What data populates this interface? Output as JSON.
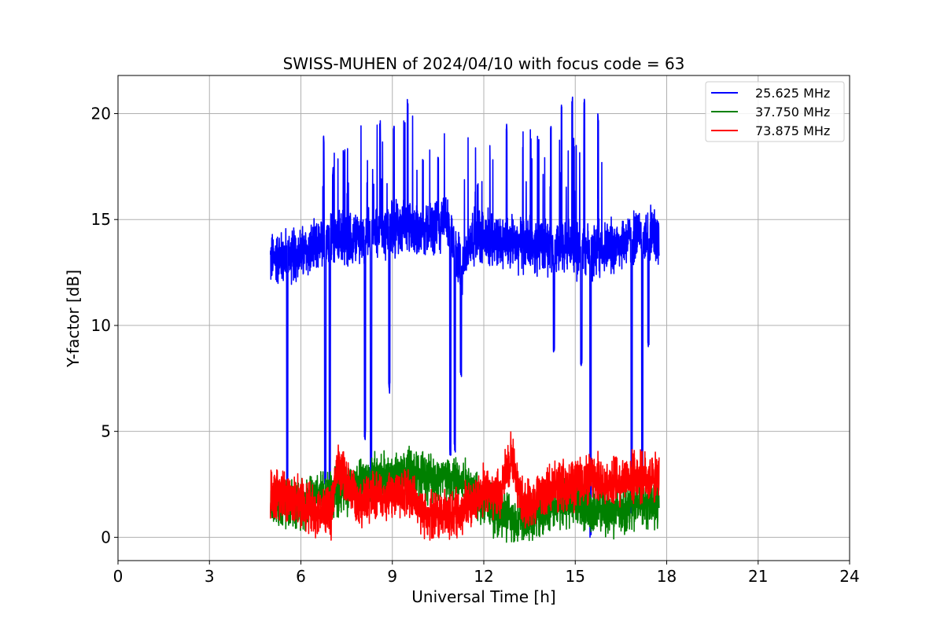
{
  "chart_data": {
    "type": "line",
    "title": "SWISS-MUHEN of 2024/04/10 with focus code = 63",
    "xlabel": "Universal Time [h]",
    "ylabel": "Y-factor [dB]",
    "xlim": [
      0,
      24
    ],
    "ylim": [
      -1.1,
      21.8
    ],
    "xticks": [
      0,
      3,
      6,
      9,
      12,
      15,
      18,
      21,
      24
    ],
    "yticks": [
      0,
      5,
      10,
      15,
      20
    ],
    "grid": true,
    "legend_position": "top-right",
    "x_range_data": [
      5.0,
      17.75
    ],
    "series": [
      {
        "name": "25.625 MHz",
        "color": "#0000ff",
        "baseline": [
          [
            5.0,
            13.1
          ],
          [
            5.5,
            13.3
          ],
          [
            6.0,
            13.4
          ],
          [
            6.5,
            13.6
          ],
          [
            7.0,
            14.0
          ],
          [
            8.0,
            14.2
          ],
          [
            9.0,
            14.6
          ],
          [
            10.0,
            14.5
          ],
          [
            10.8,
            14.8
          ],
          [
            11.3,
            12.5
          ],
          [
            11.6,
            14.2
          ],
          [
            12.5,
            14.0
          ],
          [
            13.5,
            13.8
          ],
          [
            14.5,
            13.7
          ],
          [
            15.5,
            13.4
          ],
          [
            16.3,
            13.8
          ],
          [
            17.0,
            14.2
          ],
          [
            17.75,
            14.3
          ]
        ],
        "peaks": [
          [
            6.75,
            19.0
          ],
          [
            7.05,
            17.5
          ],
          [
            7.4,
            18.3
          ],
          [
            8.1,
            17.5
          ],
          [
            8.6,
            19.7
          ],
          [
            9.05,
            19.5
          ],
          [
            9.5,
            20.7
          ],
          [
            10.0,
            17.9
          ],
          [
            10.5,
            18.0
          ],
          [
            11.8,
            16.8
          ],
          [
            12.75,
            19.5
          ],
          [
            13.8,
            19.0
          ],
          [
            14.2,
            19.5
          ],
          [
            14.55,
            20.5
          ],
          [
            14.9,
            20.8
          ],
          [
            15.3,
            20.8
          ],
          [
            15.75,
            20.0
          ],
          [
            17.2,
            16.7
          ]
        ],
        "dips": [
          [
            5.55,
            2.5
          ],
          [
            6.8,
            2.5
          ],
          [
            6.95,
            2.6
          ],
          [
            8.1,
            4.6
          ],
          [
            8.3,
            2.6
          ],
          [
            8.9,
            6.8
          ],
          [
            10.9,
            3.8
          ],
          [
            11.05,
            4.0
          ],
          [
            11.25,
            7.5
          ],
          [
            14.3,
            8.7
          ],
          [
            15.2,
            8.1
          ],
          [
            15.5,
            0.0
          ],
          [
            16.85,
            1.1
          ],
          [
            17.2,
            2.6
          ],
          [
            17.4,
            9.0
          ]
        ]
      },
      {
        "name": "37.750 MHz",
        "color": "#008000",
        "baseline": [
          [
            5.0,
            1.3
          ],
          [
            5.5,
            1.5
          ],
          [
            6.0,
            1.6
          ],
          [
            6.5,
            1.9
          ],
          [
            7.0,
            2.1
          ],
          [
            7.5,
            2.3
          ],
          [
            8.0,
            2.6
          ],
          [
            8.5,
            2.8
          ],
          [
            9.0,
            2.9
          ],
          [
            9.5,
            3.1
          ],
          [
            10.0,
            2.9
          ],
          [
            10.5,
            2.8
          ],
          [
            11.0,
            2.7
          ],
          [
            11.5,
            2.5
          ],
          [
            12.0,
            1.6
          ],
          [
            12.5,
            1.2
          ],
          [
            13.0,
            0.8
          ],
          [
            13.5,
            0.9
          ],
          [
            14.0,
            1.4
          ],
          [
            14.5,
            1.6
          ],
          [
            15.0,
            1.8
          ],
          [
            15.5,
            1.3
          ],
          [
            16.0,
            1.2
          ],
          [
            16.5,
            1.3
          ],
          [
            17.0,
            1.6
          ],
          [
            17.75,
            1.5
          ]
        ]
      },
      {
        "name": "73.875 MHz",
        "color": "#ff0000",
        "baseline": [
          [
            5.0,
            2.1
          ],
          [
            5.5,
            2.0
          ],
          [
            6.0,
            1.6
          ],
          [
            6.5,
            1.3
          ],
          [
            7.0,
            1.2
          ],
          [
            7.2,
            3.4
          ],
          [
            7.5,
            2.6
          ],
          [
            8.0,
            1.7
          ],
          [
            8.5,
            1.9
          ],
          [
            9.0,
            2.0
          ],
          [
            9.5,
            2.1
          ],
          [
            10.0,
            1.3
          ],
          [
            10.5,
            1.0
          ],
          [
            11.0,
            1.1
          ],
          [
            11.5,
            1.5
          ],
          [
            12.0,
            2.2
          ],
          [
            12.5,
            2.0
          ],
          [
            12.9,
            4.0
          ],
          [
            13.2,
            1.8
          ],
          [
            13.5,
            1.6
          ],
          [
            14.0,
            2.1
          ],
          [
            14.5,
            2.5
          ],
          [
            15.0,
            2.4
          ],
          [
            15.5,
            2.8
          ],
          [
            16.0,
            2.6
          ],
          [
            16.5,
            2.7
          ],
          [
            17.0,
            2.9
          ],
          [
            17.75,
            2.7
          ]
        ]
      }
    ]
  }
}
